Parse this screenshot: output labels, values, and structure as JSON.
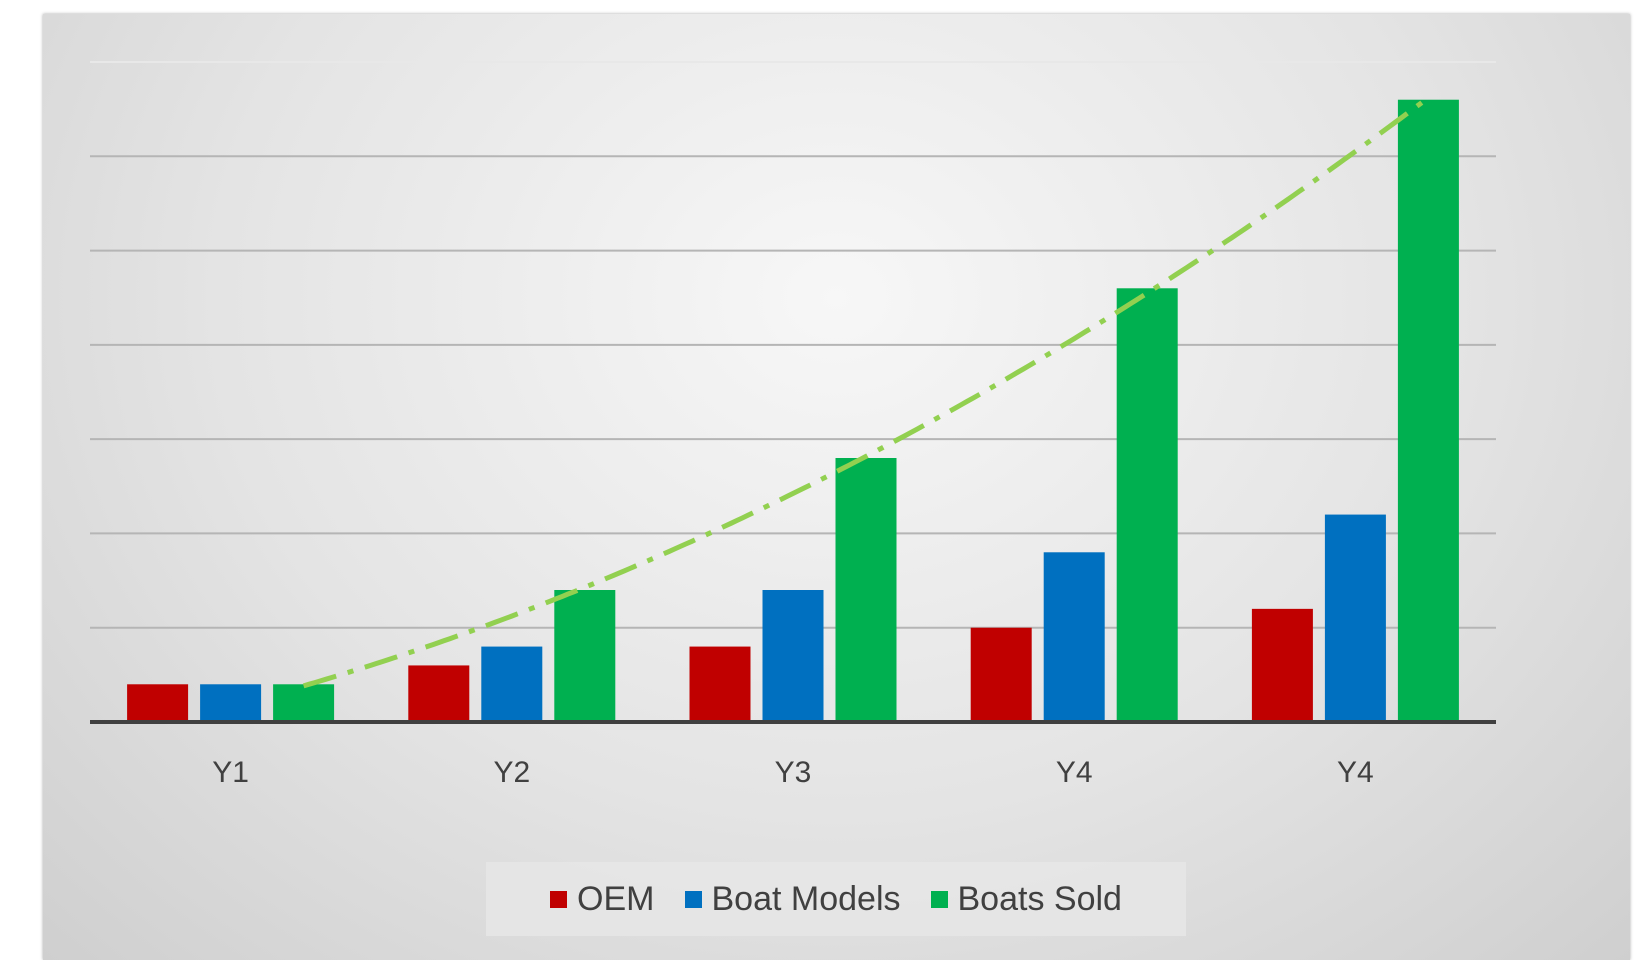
{
  "chart_data": {
    "type": "bar",
    "categories": [
      "Y1",
      "Y2",
      "Y3",
      "Y4",
      "Y4"
    ],
    "series": [
      {
        "name": "OEM",
        "color": "#c00000",
        "values": [
          0.4,
          0.6,
          0.8,
          1.0,
          1.2
        ]
      },
      {
        "name": "Boat Models",
        "color": "#0070c0",
        "values": [
          0.4,
          0.8,
          1.4,
          1.8,
          2.2
        ]
      },
      {
        "name": "Boats Sold",
        "color": "#00b050",
        "values": [
          0.4,
          1.4,
          2.8,
          4.6,
          6.6
        ]
      }
    ],
    "ylim": [
      0,
      7
    ],
    "grid": true,
    "legend": "bottom",
    "trendline": {
      "series": "Boats Sold",
      "color": "#92d050",
      "style": "dash-dot",
      "type": "polynomial"
    }
  }
}
